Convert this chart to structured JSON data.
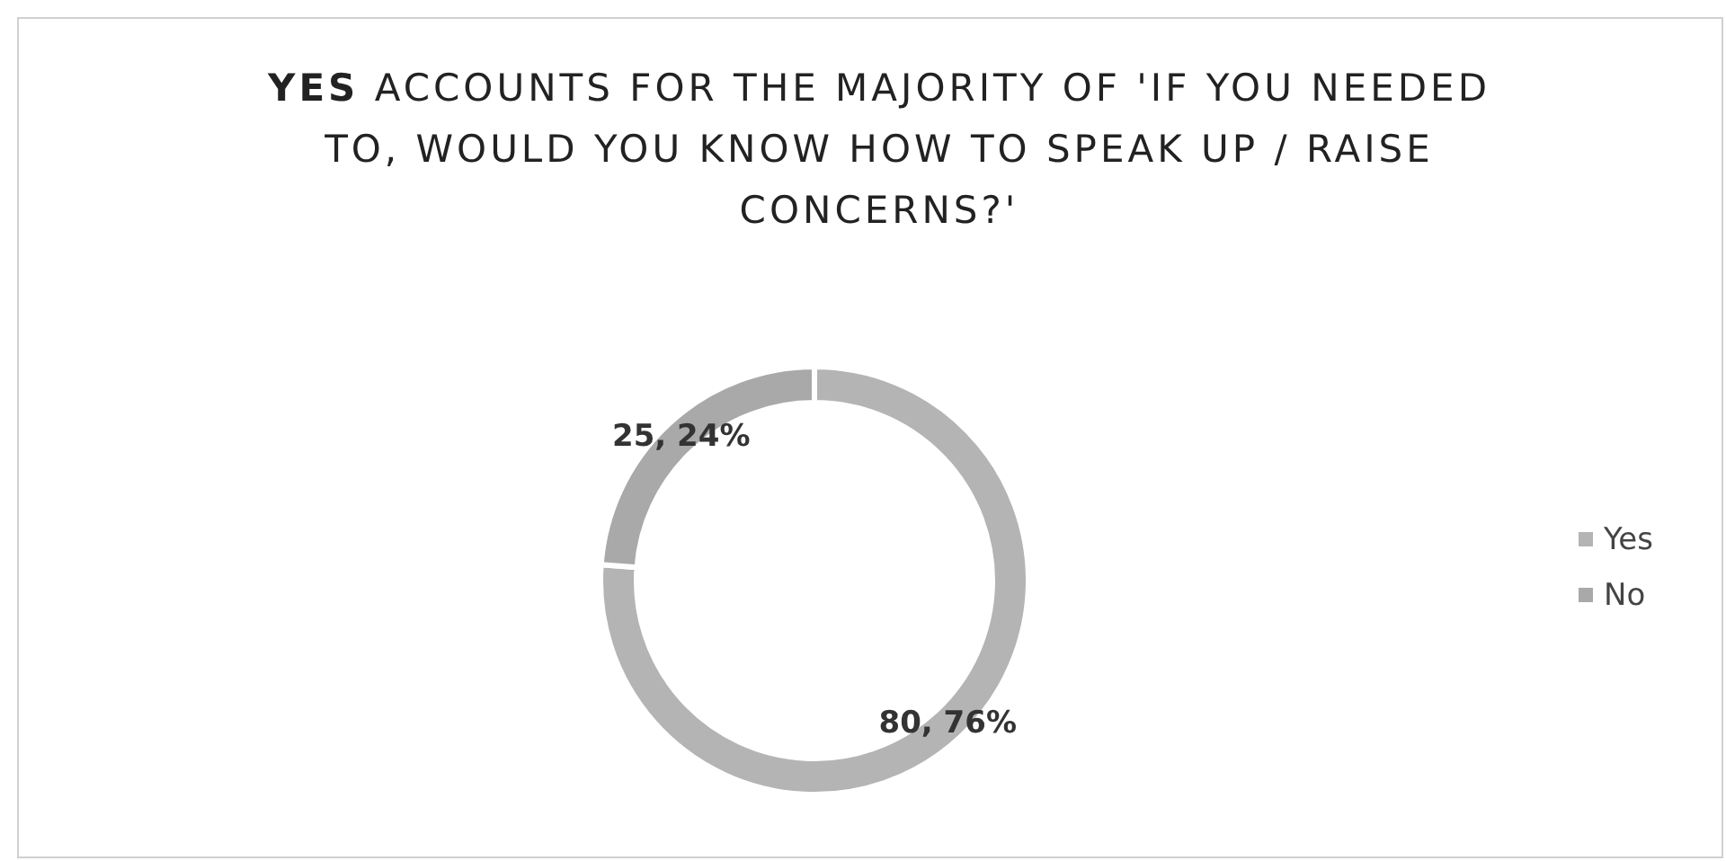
{
  "chart_data": {
    "type": "donut",
    "title": "YES ACCOUNTS FOR THE MAJORITY OF 'IF YOU NEEDED TO, WOULD YOU KNOW HOW TO SPEAK UP / RAISE CONCERNS?'",
    "categories": [
      "Yes",
      "No"
    ],
    "values": [
      80,
      25
    ],
    "colors": [
      "#b4b4b4",
      "#a9a9a9"
    ],
    "value_labels": [
      "80, 76%",
      "25, 24%"
    ],
    "legend": "right"
  }
}
